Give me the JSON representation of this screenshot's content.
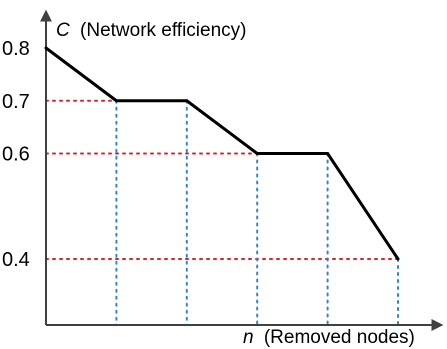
{
  "chart_data": {
    "type": "line",
    "title": "",
    "ylabel_var": "C",
    "ylabel_text": "(Network efficiency)",
    "xlabel_var": "n",
    "xlabel_text": "(Removed nodes)",
    "x": [
      0,
      1,
      2,
      3,
      4,
      5
    ],
    "y": [
      0.8,
      0.7,
      0.7,
      0.6,
      0.6,
      0.4
    ],
    "yticks": [
      "0.8",
      "0.7",
      "0.6",
      "0.4"
    ],
    "ytick_values": [
      0.8,
      0.7,
      0.6,
      0.4
    ],
    "ylim": [
      0.23,
      0.8
    ],
    "xlim": [
      0,
      5
    ],
    "grid": "dotted guides to data points",
    "colors": {
      "line": "#000000",
      "axis": "#404040",
      "h_guides": "#e0202a",
      "v_guides": "#2f86c8"
    }
  }
}
